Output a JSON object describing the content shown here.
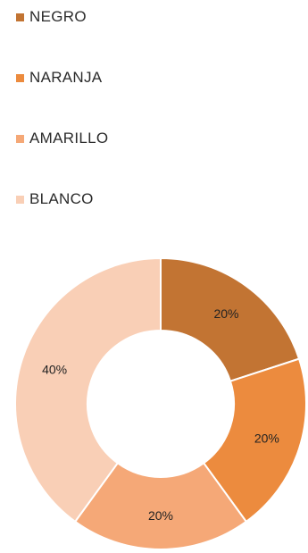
{
  "chart_data": {
    "type": "pie",
    "donut": true,
    "categories": [
      "NEGRO",
      "NARANJA",
      "AMARILLO",
      "BLANCO"
    ],
    "values": [
      20,
      20,
      20,
      40
    ],
    "data_labels": [
      "20%",
      "20%",
      "20%",
      "40%"
    ],
    "colors": [
      "#c27433",
      "#ec8b3e",
      "#f5a877",
      "#f9cfb6"
    ],
    "legend": "top-left",
    "title": "",
    "xlabel": "",
    "ylabel": ""
  }
}
